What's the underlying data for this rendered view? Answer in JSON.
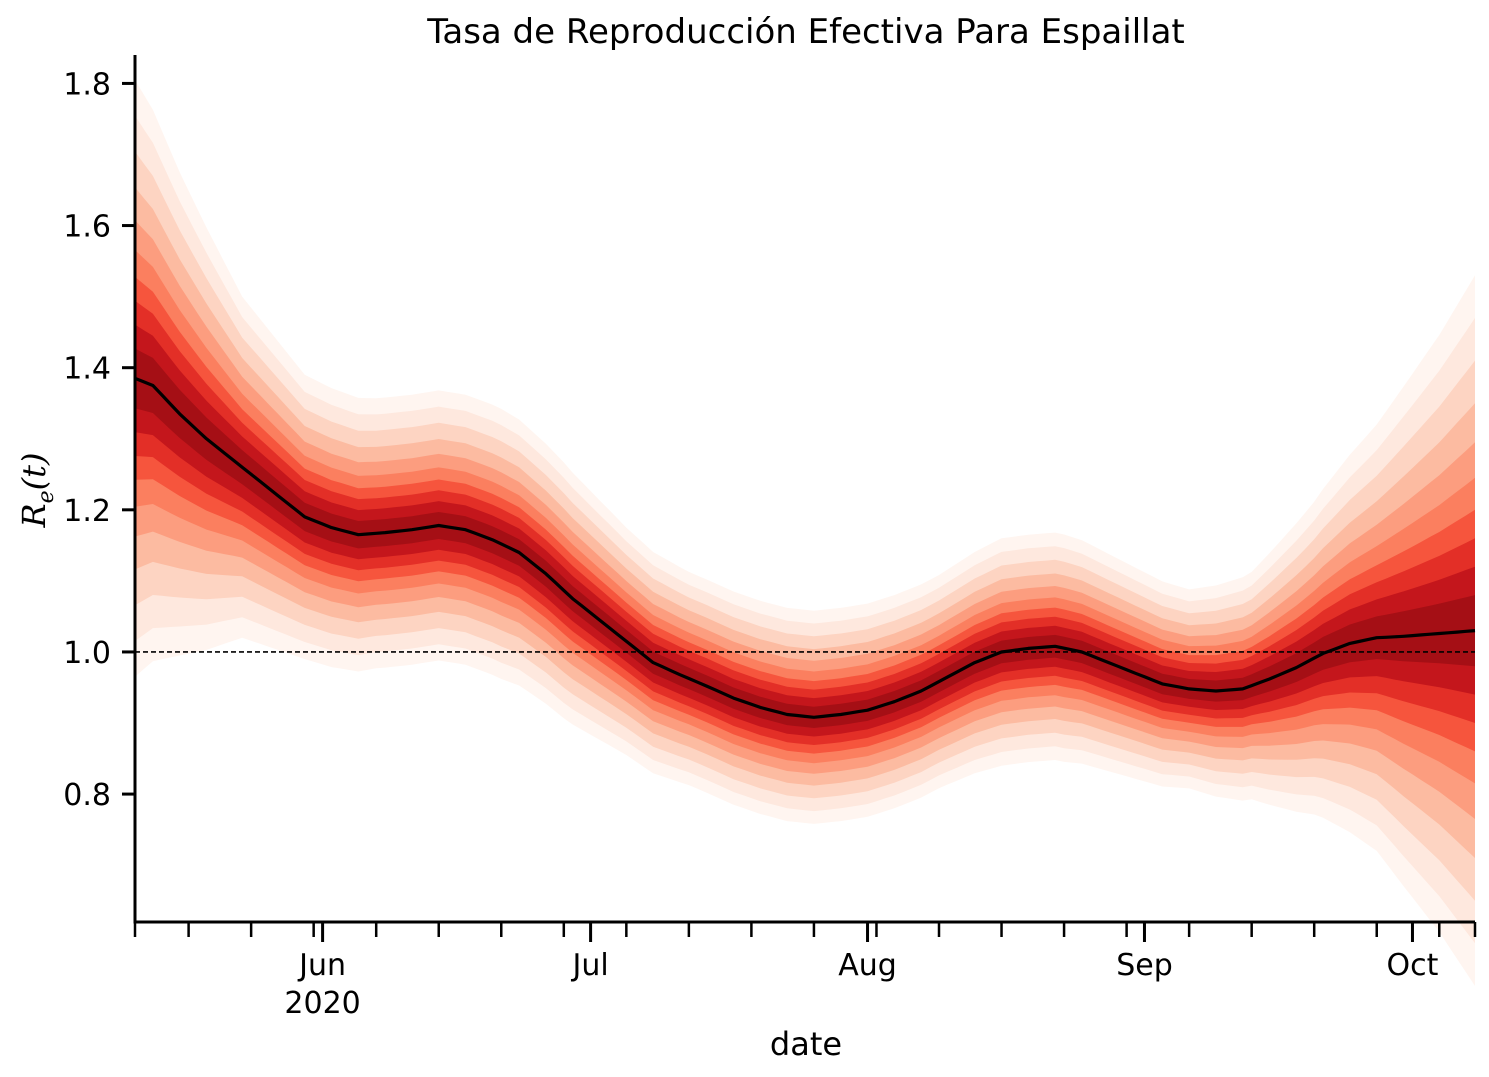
{
  "chart_data": {
    "type": "area",
    "title": "Tasa de Reproducción Efectiva Para Espaillat",
    "xlabel": "date",
    "ylabel": "R_e(t)",
    "ylabel_parts": {
      "main": "R",
      "sub": "e",
      "arg": "(t)"
    },
    "ylim": [
      0.62,
      1.84
    ],
    "y_ticks": [
      0.8,
      1.0,
      1.2,
      1.4,
      1.6,
      1.8
    ],
    "x_range": [
      "2020-05-11",
      "2020-10-08"
    ],
    "x_ticks": [
      {
        "date": "2020-06-01",
        "label": "Jun",
        "sublabel": "2020"
      },
      {
        "date": "2020-07-01",
        "label": "Jul",
        "sublabel": ""
      },
      {
        "date": "2020-08-01",
        "label": "Aug",
        "sublabel": ""
      },
      {
        "date": "2020-09-01",
        "label": "Sep",
        "sublabel": ""
      },
      {
        "date": "2020-10-01",
        "label": "Oct",
        "sublabel": ""
      }
    ],
    "minor_ticks": [
      "2020-05-11",
      "2020-05-17",
      "2020-05-24",
      "2020-05-31",
      "2020-06-07",
      "2020-06-14",
      "2020-06-21",
      "2020-06-28",
      "2020-07-05",
      "2020-07-12",
      "2020-07-19",
      "2020-07-26",
      "2020-08-02",
      "2020-08-09",
      "2020-08-16",
      "2020-08-23",
      "2020-08-30",
      "2020-09-06",
      "2020-09-13",
      "2020-09-20",
      "2020-09-27",
      "2020-10-04",
      "2020-10-08"
    ],
    "reference_line": {
      "y": 1.0,
      "style": "dashed"
    },
    "grid": false,
    "legend": "none",
    "series": [
      {
        "kind": "median",
        "x": [
          "2020-05-11",
          "2020-05-13",
          "2020-05-16",
          "2020-05-19",
          "2020-05-23",
          "2020-05-27",
          "2020-05-30",
          "2020-06-02",
          "2020-06-05",
          "2020-06-08",
          "2020-06-11",
          "2020-06-14",
          "2020-06-17",
          "2020-06-20",
          "2020-06-23",
          "2020-06-26",
          "2020-06-29",
          "2020-07-02",
          "2020-07-05",
          "2020-07-08",
          "2020-07-11",
          "2020-07-14",
          "2020-07-17",
          "2020-07-20",
          "2020-07-23",
          "2020-07-26",
          "2020-07-29",
          "2020-08-01",
          "2020-08-04",
          "2020-08-07",
          "2020-08-10",
          "2020-08-13",
          "2020-08-16",
          "2020-08-19",
          "2020-08-22",
          "2020-08-25",
          "2020-08-28",
          "2020-08-31",
          "2020-09-03",
          "2020-09-06",
          "2020-09-09",
          "2020-09-12",
          "2020-09-15",
          "2020-09-18",
          "2020-09-21",
          "2020-09-24",
          "2020-09-27",
          "2020-09-30",
          "2020-10-03",
          "2020-10-06",
          "2020-10-08"
        ],
        "values": [
          1.385,
          1.375,
          1.335,
          1.3,
          1.26,
          1.22,
          1.19,
          1.175,
          1.165,
          1.168,
          1.172,
          1.178,
          1.172,
          1.158,
          1.14,
          1.11,
          1.075,
          1.045,
          1.015,
          0.985,
          0.968,
          0.952,
          0.935,
          0.922,
          0.912,
          0.908,
          0.912,
          0.918,
          0.93,
          0.945,
          0.965,
          0.985,
          1.0,
          1.005,
          1.008,
          1.0,
          0.985,
          0.97,
          0.955,
          0.948,
          0.945,
          0.948,
          0.962,
          0.978,
          0.998,
          1.012,
          1.02,
          1.022,
          1.025,
          1.028,
          1.03
        ]
      },
      {
        "kind": "uncertainty_halfwidth",
        "x": [
          "2020-05-11",
          "2020-05-16",
          "2020-05-23",
          "2020-05-30",
          "2020-06-07",
          "2020-06-14",
          "2020-06-21",
          "2020-06-28",
          "2020-07-05",
          "2020-07-12",
          "2020-07-19",
          "2020-07-26",
          "2020-08-02",
          "2020-08-09",
          "2020-08-16",
          "2020-08-23",
          "2020-08-30",
          "2020-09-06",
          "2020-09-13",
          "2020-09-20",
          "2020-09-27",
          "2020-10-04",
          "2020-10-08"
        ],
        "values": [
          0.42,
          0.34,
          0.24,
          0.2,
          0.19,
          0.19,
          0.19,
          0.18,
          0.16,
          0.15,
          0.15,
          0.15,
          0.15,
          0.15,
          0.16,
          0.16,
          0.15,
          0.14,
          0.16,
          0.22,
          0.3,
          0.42,
          0.5
        ]
      }
    ],
    "colors": {
      "band": "#ef3b2c",
      "band_core": "#a50f15",
      "median_line": "#000000",
      "reference_line": "#000000",
      "axis": "#000000"
    }
  }
}
